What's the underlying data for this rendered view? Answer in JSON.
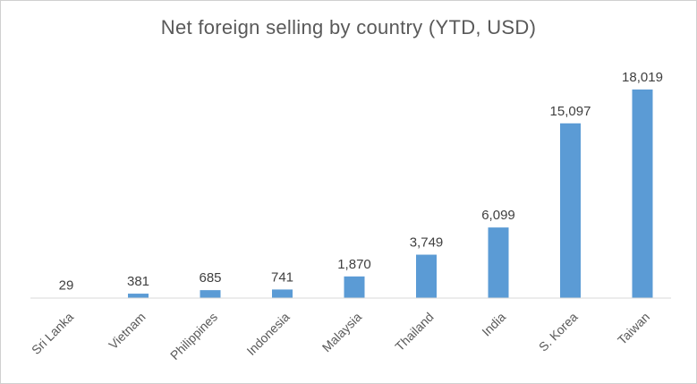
{
  "chart_data": {
    "type": "bar",
    "title": "Net foreign selling by country (YTD, USD)",
    "categories": [
      "Sri Lanka",
      "Vietnam",
      "Philippines",
      "Indonesia",
      "Malaysia",
      "Thailand",
      "India",
      "S. Korea",
      "Taiwan"
    ],
    "values": [
      29,
      381,
      685,
      741,
      1870,
      3749,
      6099,
      15097,
      18019
    ],
    "value_labels": [
      "29",
      "381",
      "685",
      "741",
      "1,870",
      "3,749",
      "6,099",
      "15,097",
      "18,019"
    ],
    "xlabel": "",
    "ylabel": "",
    "ylim": [
      0,
      18019
    ],
    "grid": false,
    "legend": "none",
    "bar_color": "#5b9bd5",
    "axis_color": "#d9d9d9"
  }
}
